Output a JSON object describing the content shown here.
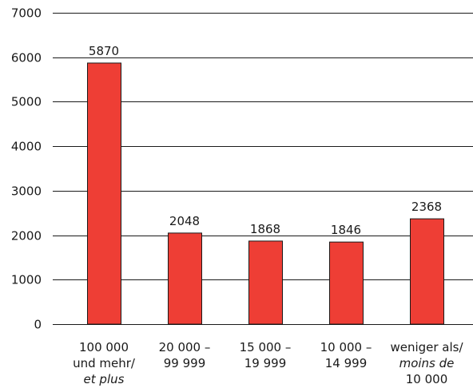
{
  "chart_data": {
    "type": "bar",
    "categories": [
      {
        "lines": [
          {
            "text": "100 000",
            "italic": false
          },
          {
            "text": "und mehr/",
            "italic": false
          },
          {
            "text": "et plus",
            "italic": true
          }
        ]
      },
      {
        "lines": [
          {
            "text": "20 000 –",
            "italic": false
          },
          {
            "text": "99 999",
            "italic": false
          }
        ]
      },
      {
        "lines": [
          {
            "text": "15 000 –",
            "italic": false
          },
          {
            "text": "19 999",
            "italic": false
          }
        ]
      },
      {
        "lines": [
          {
            "text": "10 000 –",
            "italic": false
          },
          {
            "text": "14 999",
            "italic": false
          }
        ]
      },
      {
        "lines": [
          {
            "text": "weniger als/",
            "italic": false
          },
          {
            "text": "moins de",
            "italic": true
          },
          {
            "text": "10 000",
            "italic": false
          }
        ]
      }
    ],
    "values": [
      5870,
      2048,
      1868,
      1846,
      2368
    ],
    "value_labels": [
      "5870",
      "2048",
      "1868",
      "1846",
      "2368"
    ],
    "yticks": [
      0,
      1000,
      2000,
      3000,
      4000,
      5000,
      6000,
      7000
    ],
    "ytick_labels": [
      "0",
      "1000",
      "2000",
      "3000",
      "4000",
      "5000",
      "6000",
      "7000"
    ],
    "ylim": [
      0,
      7000
    ],
    "grid": true,
    "legend": false,
    "title": "",
    "xlabel": "",
    "ylabel": "",
    "bar_color": "#ee3e35",
    "bar_edge_color": "#1a1a1a"
  }
}
